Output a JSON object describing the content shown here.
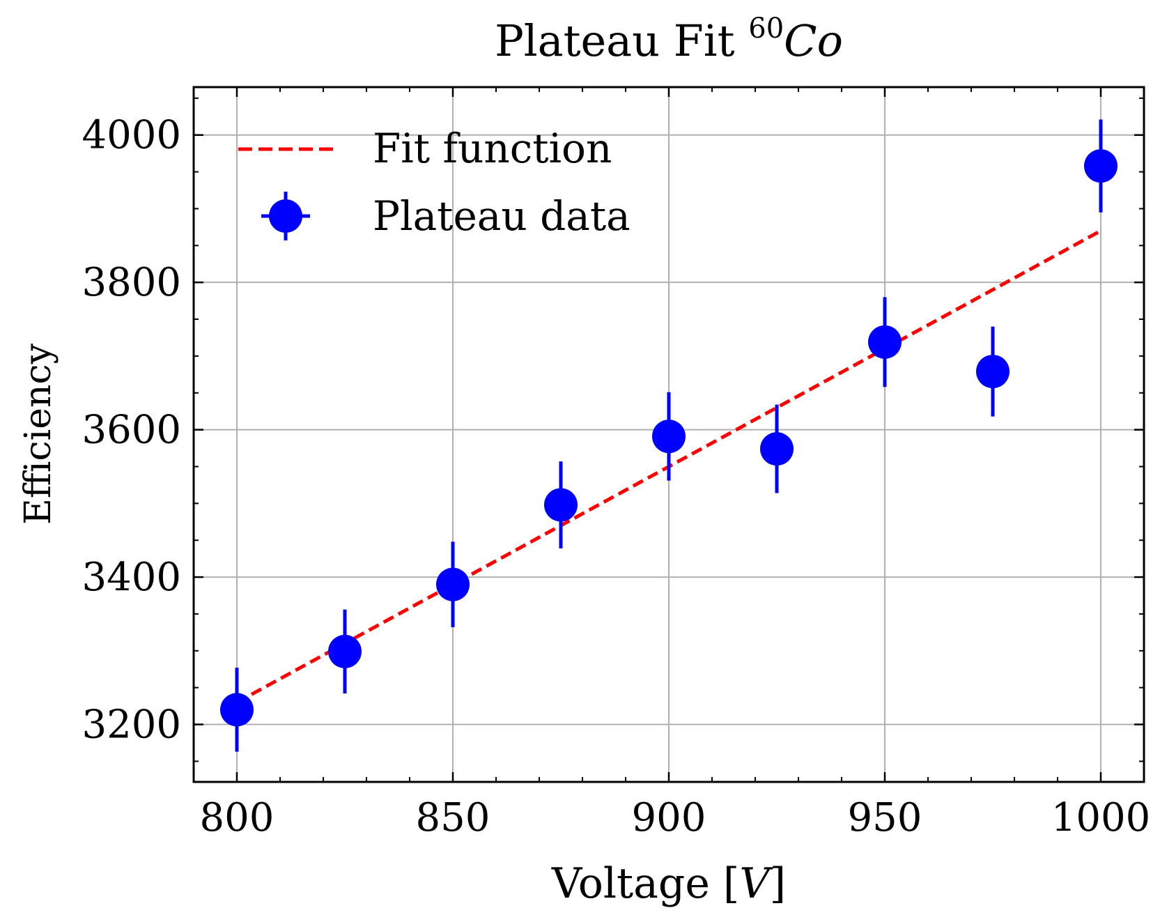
{
  "chart_data": {
    "type": "scatter",
    "title_prefix": "Plateau Fit ",
    "title_sup": "60",
    "title_suffix": "Co",
    "xlabel_prefix": "Voltage [",
    "xlabel_unit": "V",
    "xlabel_suffix": "]",
    "ylabel": "Efficiency",
    "xlim": [
      790,
      1010
    ],
    "ylim": [
      3122,
      4065
    ],
    "x_ticks": [
      800,
      850,
      900,
      950,
      1000
    ],
    "x_minor_ticks": [
      810,
      820,
      830,
      840,
      860,
      870,
      880,
      890,
      910,
      920,
      930,
      940,
      960,
      970,
      980,
      990,
      1010
    ],
    "y_ticks": [
      3200,
      3400,
      3600,
      3800,
      4000
    ],
    "y_minor_ticks": [
      3150,
      3250,
      3300,
      3350,
      3450,
      3500,
      3550,
      3650,
      3700,
      3750,
      3850,
      3900,
      3950,
      4050
    ],
    "grid": true,
    "legend_position": "top-left",
    "series": [
      {
        "name": "Fit function",
        "kind": "line",
        "style": "dashed",
        "color": "#ff0000",
        "x": [
          800,
          1000
        ],
        "y": [
          3230,
          3870
        ]
      },
      {
        "name": "Plateau data",
        "kind": "errorbar",
        "color": "#0000ff",
        "x": [
          800,
          825,
          850,
          875,
          900,
          925,
          950,
          975,
          1000
        ],
        "y": [
          3220,
          3299,
          3390,
          3498,
          3591,
          3574,
          3719,
          3679,
          3958
        ],
        "yerr": [
          57,
          57,
          58,
          59,
          60,
          60,
          61,
          61,
          63
        ]
      }
    ]
  }
}
